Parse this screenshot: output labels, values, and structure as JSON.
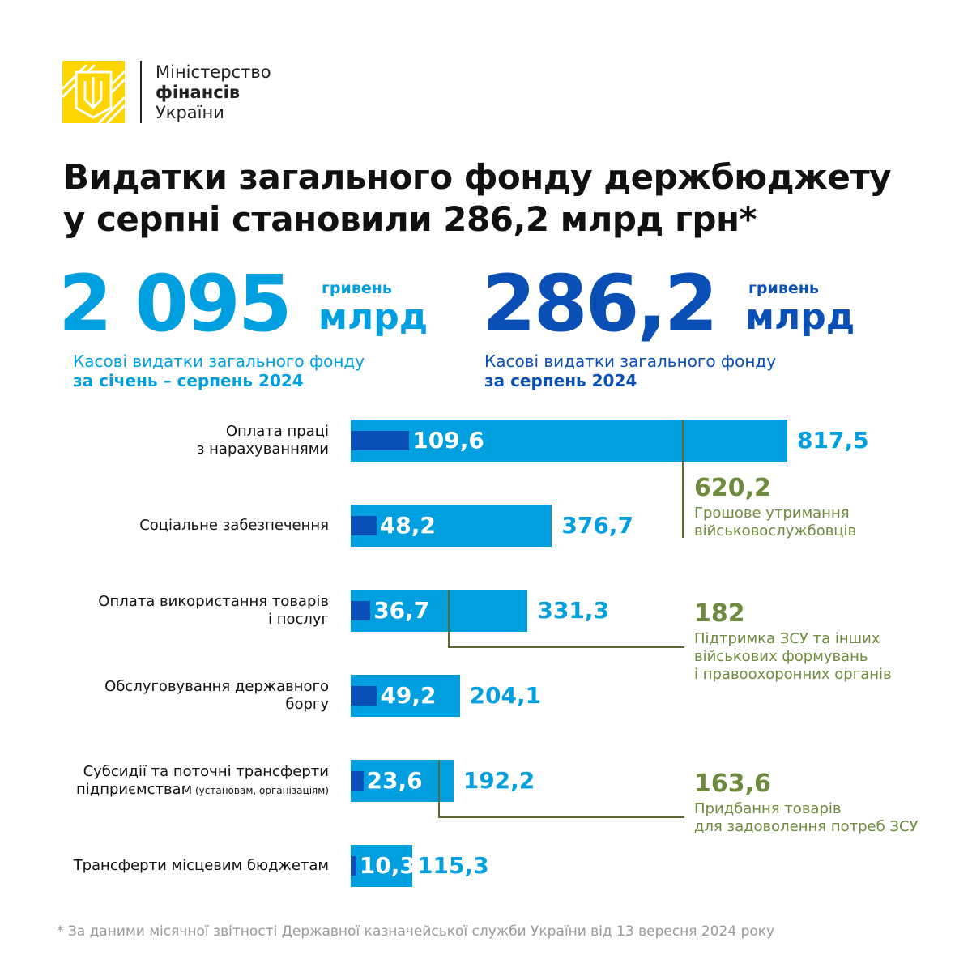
{
  "logo": {
    "line1": "Міністерство",
    "line2": "фінансів",
    "line3": "України"
  },
  "title": {
    "line1": "Видатки загального фонду держбюджету",
    "line2": "у серпні становили 286,2 млрд грн*"
  },
  "kpis": [
    {
      "value": "2 095",
      "unit_small": "гривень",
      "unit_big": "млрд",
      "desc1": "Касові видатки загального фонду",
      "desc2": "за січень – серпень 2024",
      "color": "#009fdf"
    },
    {
      "value": "286,2",
      "unit_small": "гривень",
      "unit_big": "млрд",
      "desc1": "Касові видатки загального фонду",
      "desc2": "за серпень 2024",
      "color": "#0a4fb5"
    }
  ],
  "chart_data": {
    "type": "bar",
    "categories": [
      [
        "Оплата праці",
        "з нарахуваннями"
      ],
      [
        "Соціальне забезпечення"
      ],
      [
        "Оплата використання товарів",
        "і послуг"
      ],
      [
        "Обслуговування державного",
        "боргу"
      ],
      [
        "Субсидії та поточні трансферти",
        "підприємствам",
        "(установам, організаціям)"
      ],
      [
        "Трансферти місцевим бюджетам"
      ]
    ],
    "series": [
      {
        "name": "за січень – серпень 2024",
        "values": [
          817.5,
          376.7,
          331.3,
          204.1,
          192.2,
          115.3
        ],
        "labels": [
          "817,5",
          "376,7",
          "331,3",
          "204,1",
          "192,2",
          "115,3"
        ],
        "color": "#009fdf"
      },
      {
        "name": "за серпень 2024",
        "values": [
          109.6,
          48.2,
          36.7,
          49.2,
          23.6,
          10.3
        ],
        "labels": [
          "109,6",
          "48,2",
          "36,7",
          "49,2",
          "23,6",
          "10,3"
        ],
        "color": "#0a4fb5"
      }
    ],
    "annotations": [
      {
        "category_index": 0,
        "value": 620.2,
        "label": "620,2",
        "text": [
          "Грошове утримання",
          "військовослужбовців"
        ]
      },
      {
        "category_index": 2,
        "value": 182,
        "label": "182",
        "text": [
          "Підтримка ЗСУ та інших",
          "військових формувань",
          "і правоохоронних органів"
        ]
      },
      {
        "category_index": 4,
        "value": 163.6,
        "label": "163,6",
        "text": [
          "Придбання товарів",
          "для задоволення потреб ЗСУ"
        ]
      }
    ],
    "unit": "млрд грн"
  },
  "footnote": "* За даними місячної звітності Державної казначейської служби України від 13 вересня 2024 року"
}
